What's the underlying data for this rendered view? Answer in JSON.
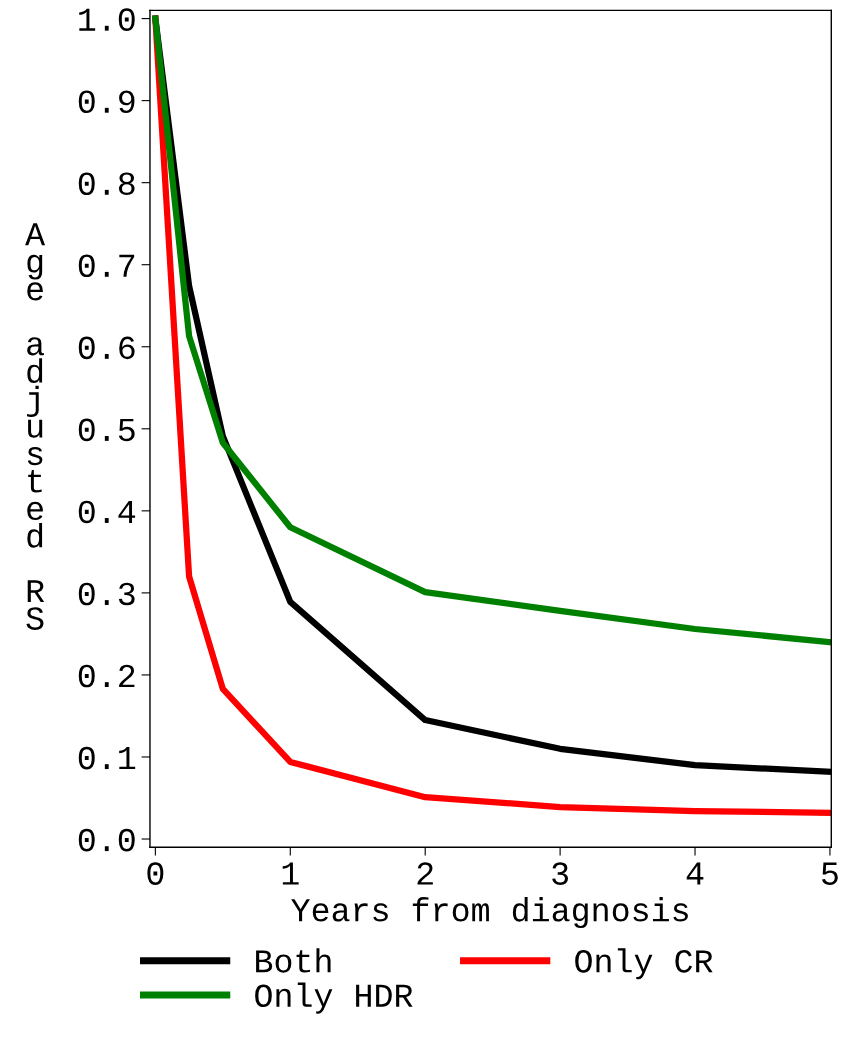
{
  "chart_data": {
    "type": "line",
    "xlabel": "Years from diagnosis",
    "ylabel": "Age adjusted RS",
    "x": [
      0,
      0.25,
      0.5,
      1,
      2,
      3,
      4,
      5
    ],
    "series": [
      {
        "name": "Both",
        "color": "#000000",
        "values": [
          1.0,
          0.674,
          0.491,
          0.289,
          0.145,
          0.11,
          0.09,
          0.082
        ]
      },
      {
        "name": "Only CR",
        "color": "#ff0000",
        "values": [
          1.0,
          0.32,
          0.183,
          0.094,
          0.051,
          0.039,
          0.034,
          0.032
        ]
      },
      {
        "name": "Only HDR",
        "color": "#008000",
        "values": [
          1.0,
          0.613,
          0.483,
          0.38,
          0.301,
          0.278,
          0.256,
          0.24
        ]
      }
    ],
    "xlim": [
      -0.04,
      5.01
    ],
    "ylim": [
      -0.01,
      1.01
    ],
    "xticks": [
      0,
      1,
      2,
      3,
      4,
      5
    ],
    "yticks": [
      {
        "value": 0,
        "label": "0.0"
      },
      0.1,
      0.2,
      0.3,
      0.4,
      0.5,
      0.6,
      0.7,
      0.8,
      0.9,
      {
        "value": 1,
        "label": "1.0"
      }
    ],
    "grid": false,
    "legend": "bottom",
    "marker": "none",
    "line_style": "solid"
  }
}
